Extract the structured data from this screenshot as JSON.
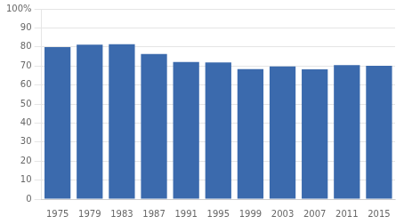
{
  "chart_data": {
    "type": "bar",
    "categories": [
      "1975",
      "1979",
      "1983",
      "1987",
      "1991",
      "1995",
      "1999",
      "2003",
      "2007",
      "2011",
      "2015"
    ],
    "values": [
      79.9,
      81.2,
      81.4,
      76.3,
      72.1,
      71.9,
      68.3,
      69.7,
      68.2,
      70.5,
      70.1
    ],
    "color": "#3b6aad",
    "ylim": [
      0,
      100
    ],
    "yticks": [
      0,
      10,
      20,
      30,
      40,
      50,
      60,
      70,
      80,
      90,
      {
        "value": 100,
        "label": "100%"
      }
    ],
    "grid": true
  }
}
